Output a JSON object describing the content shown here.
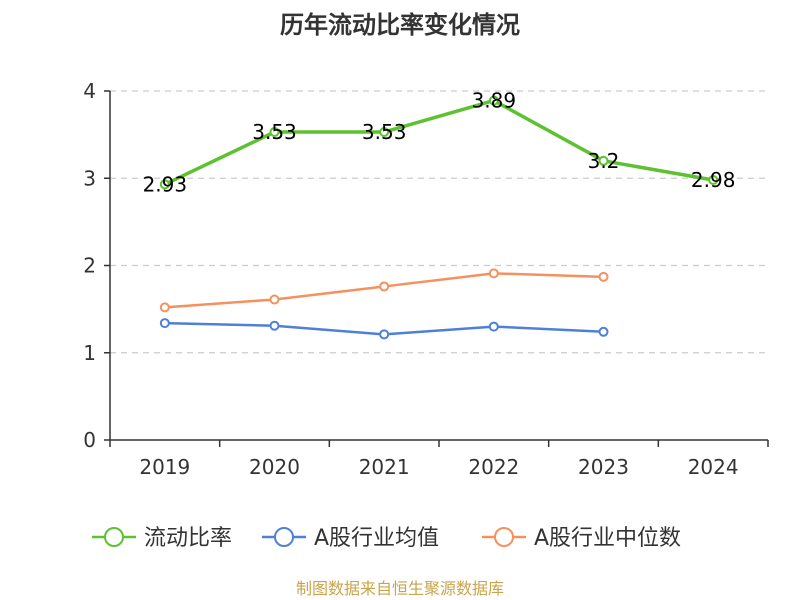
{
  "chart_data": {
    "type": "line",
    "title": "历年流动比率变化情况",
    "categories": [
      "2019",
      "2020",
      "2021",
      "2022",
      "2023",
      "2024"
    ],
    "ylim": [
      0,
      4
    ],
    "yticks": [
      0,
      1,
      2,
      3,
      4
    ],
    "grid": true,
    "legend_position": "bottom",
    "series": [
      {
        "name": "流动比率",
        "color": "#5ec12f",
        "values": [
          2.93,
          3.53,
          3.53,
          3.89,
          3.2,
          2.98
        ],
        "labels": [
          "2.93",
          "3.53",
          "3.53",
          "3.89",
          "3.2",
          "2.98"
        ]
      },
      {
        "name": "A股行业均值",
        "color": "#4f80d8",
        "values": [
          1.34,
          1.31,
          1.21,
          1.3,
          1.24,
          null
        ]
      },
      {
        "name": "A股行业中位数",
        "color": "#f4915e",
        "values": [
          1.52,
          1.61,
          1.76,
          1.91,
          1.87,
          null
        ]
      }
    ]
  },
  "source": "制图数据来自恒生聚源数据库"
}
